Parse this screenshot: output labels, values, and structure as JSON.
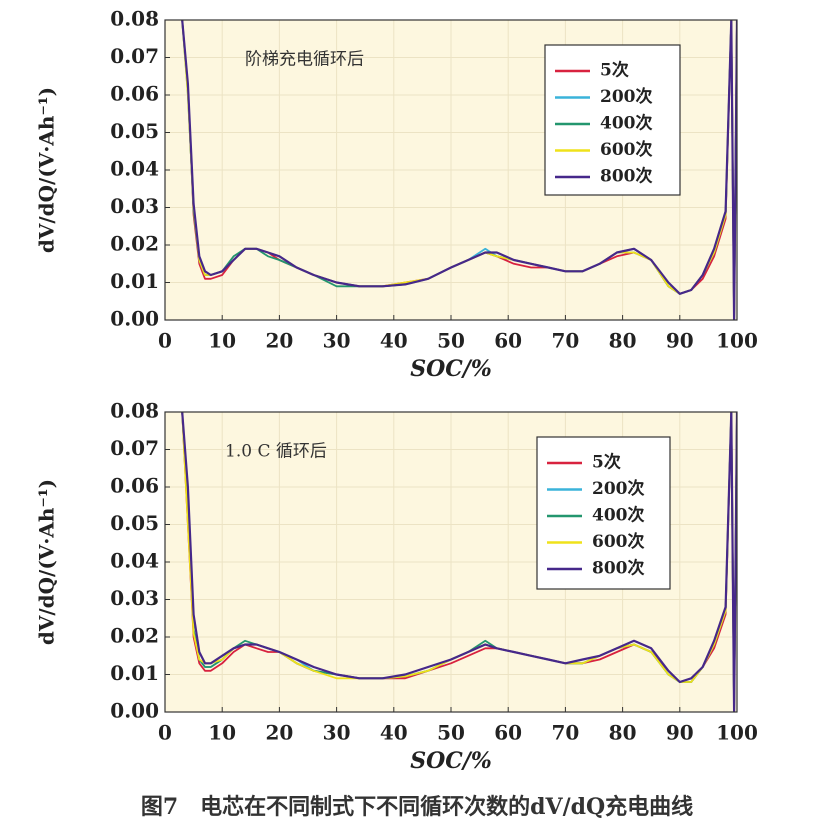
{
  "chart_data": [
    {
      "type": "line",
      "annotation": "阶梯充电循环后",
      "xlabel": "SOC/%",
      "ylabel": "dV/dQ/(V·Ah⁻¹)",
      "x": [
        3,
        4,
        5,
        6,
        7,
        8,
        10,
        12,
        14,
        16,
        18,
        20,
        23,
        26,
        30,
        34,
        38,
        42,
        46,
        50,
        53,
        56,
        58,
        61,
        64,
        67,
        70,
        73,
        76,
        79,
        82,
        85,
        88,
        90,
        92,
        94,
        96,
        98,
        99,
        99.5,
        100
      ],
      "series": [
        {
          "name": "5次",
          "color": "#d8223f",
          "values": [
            0.08,
            0.062,
            0.028,
            0.015,
            0.011,
            0.011,
            0.012,
            0.016,
            0.019,
            0.019,
            0.018,
            0.016,
            0.014,
            0.012,
            0.01,
            0.009,
            0.009,
            0.01,
            0.011,
            0.014,
            0.016,
            0.018,
            0.017,
            0.015,
            0.014,
            0.014,
            0.013,
            0.013,
            0.015,
            0.017,
            0.018,
            0.016,
            0.009,
            0.007,
            0.008,
            0.011,
            0.017,
            0.027,
            0.08,
            0,
            0.08
          ]
        },
        {
          "name": "200次",
          "color": "#3ab3da",
          "values": [
            0.08,
            0.06,
            0.03,
            0.016,
            0.012,
            0.012,
            0.013,
            0.016,
            0.019,
            0.019,
            0.018,
            0.017,
            0.014,
            0.012,
            0.01,
            0.009,
            0.009,
            0.0095,
            0.011,
            0.014,
            0.016,
            0.019,
            0.017,
            0.016,
            0.015,
            0.014,
            0.013,
            0.013,
            0.015,
            0.018,
            0.018,
            0.016,
            0.009,
            0.007,
            0.008,
            0.012,
            0.018,
            0.028,
            0.08,
            0,
            0.08
          ]
        },
        {
          "name": "400次",
          "color": "#23966e",
          "values": [
            0.08,
            0.061,
            0.029,
            0.016,
            0.012,
            0.012,
            0.013,
            0.017,
            0.019,
            0.019,
            0.017,
            0.016,
            0.014,
            0.012,
            0.009,
            0.009,
            0.009,
            0.0095,
            0.011,
            0.014,
            0.016,
            0.018,
            0.017,
            0.016,
            0.015,
            0.014,
            0.013,
            0.013,
            0.015,
            0.018,
            0.019,
            0.016,
            0.009,
            0.007,
            0.008,
            0.012,
            0.018,
            0.028,
            0.08,
            0,
            0.08
          ]
        },
        {
          "name": "600次",
          "color": "#efe21a",
          "values": [
            0.08,
            0.06,
            0.03,
            0.016,
            0.012,
            0.012,
            0.013,
            0.016,
            0.019,
            0.019,
            0.018,
            0.017,
            0.014,
            0.012,
            0.01,
            0.009,
            0.009,
            0.01,
            0.011,
            0.014,
            0.016,
            0.018,
            0.017,
            0.016,
            0.015,
            0.014,
            0.013,
            0.013,
            0.015,
            0.018,
            0.018,
            0.016,
            0.009,
            0.007,
            0.008,
            0.012,
            0.018,
            0.028,
            0.08,
            0,
            0.08
          ]
        },
        {
          "name": "800次",
          "color": "#46288a",
          "values": [
            0.08,
            0.063,
            0.031,
            0.017,
            0.013,
            0.012,
            0.013,
            0.016,
            0.019,
            0.019,
            0.018,
            0.017,
            0.014,
            0.012,
            0.01,
            0.009,
            0.009,
            0.0095,
            0.011,
            0.014,
            0.016,
            0.018,
            0.018,
            0.016,
            0.015,
            0.014,
            0.013,
            0.013,
            0.015,
            0.018,
            0.019,
            0.016,
            0.01,
            0.007,
            0.008,
            0.012,
            0.019,
            0.029,
            0.08,
            0,
            0.08
          ]
        }
      ],
      "xlim": [
        0,
        100
      ],
      "xticks": [
        0,
        10,
        20,
        30,
        40,
        50,
        60,
        70,
        80,
        90,
        100
      ],
      "ylim": [
        0,
        0.08
      ],
      "yticks": [
        {
          "value": 0,
          "label": "0.00"
        },
        0.01,
        0.02,
        0.03,
        0.04,
        0.05,
        0.06,
        0.07,
        0.08
      ],
      "grid": true,
      "legend": "upper right"
    },
    {
      "type": "line",
      "annotation": "1.0 C 循环后",
      "xlabel": "SOC/%",
      "ylabel": "dV/dQ/(V·Ah⁻¹)",
      "x": [
        3,
        4,
        5,
        6,
        7,
        8,
        10,
        12,
        14,
        16,
        18,
        20,
        23,
        26,
        30,
        34,
        38,
        42,
        46,
        50,
        53,
        56,
        58,
        61,
        64,
        67,
        70,
        73,
        76,
        79,
        82,
        85,
        88,
        90,
        92,
        94,
        96,
        98,
        99,
        99.5,
        100
      ],
      "series": [
        {
          "name": "5次",
          "color": "#d8223f",
          "values": [
            0.08,
            0.05,
            0.02,
            0.013,
            0.011,
            0.011,
            0.013,
            0.016,
            0.018,
            0.017,
            0.016,
            0.016,
            0.013,
            0.011,
            0.01,
            0.009,
            0.009,
            0.009,
            0.011,
            0.013,
            0.015,
            0.017,
            0.017,
            0.016,
            0.015,
            0.014,
            0.013,
            0.013,
            0.014,
            0.016,
            0.018,
            0.016,
            0.011,
            0.008,
            0.008,
            0.012,
            0.017,
            0.026,
            0.08,
            0,
            0.08
          ]
        },
        {
          "name": "200次",
          "color": "#3ab3da",
          "values": [
            0.08,
            0.052,
            0.022,
            0.014,
            0.012,
            0.012,
            0.014,
            0.017,
            0.018,
            0.018,
            0.017,
            0.016,
            0.014,
            0.011,
            0.01,
            0.009,
            0.009,
            0.0095,
            0.011,
            0.014,
            0.016,
            0.018,
            0.017,
            0.016,
            0.015,
            0.014,
            0.013,
            0.013,
            0.015,
            0.017,
            0.018,
            0.016,
            0.01,
            0.008,
            0.008,
            0.012,
            0.018,
            0.027,
            0.08,
            0,
            0.08
          ]
        },
        {
          "name": "400次",
          "color": "#23966e",
          "values": [
            0.08,
            0.053,
            0.022,
            0.014,
            0.012,
            0.012,
            0.014,
            0.017,
            0.019,
            0.018,
            0.017,
            0.016,
            0.013,
            0.011,
            0.01,
            0.009,
            0.009,
            0.0095,
            0.011,
            0.014,
            0.016,
            0.019,
            0.017,
            0.016,
            0.015,
            0.014,
            0.013,
            0.013,
            0.015,
            0.017,
            0.018,
            0.016,
            0.01,
            0.008,
            0.008,
            0.012,
            0.018,
            0.027,
            0.08,
            0,
            0.08
          ]
        },
        {
          "name": "600次",
          "color": "#efe21a",
          "values": [
            0.08,
            0.05,
            0.021,
            0.014,
            0.013,
            0.013,
            0.014,
            0.017,
            0.018,
            0.018,
            0.017,
            0.016,
            0.013,
            0.011,
            0.009,
            0.009,
            0.009,
            0.0095,
            0.011,
            0.014,
            0.016,
            0.018,
            0.017,
            0.016,
            0.015,
            0.014,
            0.013,
            0.013,
            0.015,
            0.017,
            0.018,
            0.016,
            0.01,
            0.008,
            0.008,
            0.012,
            0.018,
            0.027,
            0.08,
            0,
            0.08
          ]
        },
        {
          "name": "800次",
          "color": "#46288a",
          "values": [
            0.08,
            0.06,
            0.026,
            0.016,
            0.013,
            0.013,
            0.015,
            0.017,
            0.018,
            0.018,
            0.017,
            0.016,
            0.014,
            0.012,
            0.01,
            0.009,
            0.009,
            0.01,
            0.012,
            0.014,
            0.016,
            0.018,
            0.017,
            0.016,
            0.015,
            0.014,
            0.013,
            0.014,
            0.015,
            0.017,
            0.019,
            0.017,
            0.011,
            0.008,
            0.009,
            0.012,
            0.019,
            0.028,
            0.08,
            0,
            0.08
          ]
        }
      ],
      "xlim": [
        0,
        100
      ],
      "xticks": [
        0,
        10,
        20,
        30,
        40,
        50,
        60,
        70,
        80,
        90,
        100
      ],
      "ylim": [
        0,
        0.08
      ],
      "yticks": [
        {
          "value": 0,
          "label": "0.00"
        },
        0.01,
        0.02,
        0.03,
        0.04,
        0.05,
        0.06,
        0.07,
        0.08
      ],
      "grid": true,
      "legend": "upper right"
    }
  ],
  "caption": "图7　电芯在不同制式下不同循环次数的dV/dQ充电曲线"
}
